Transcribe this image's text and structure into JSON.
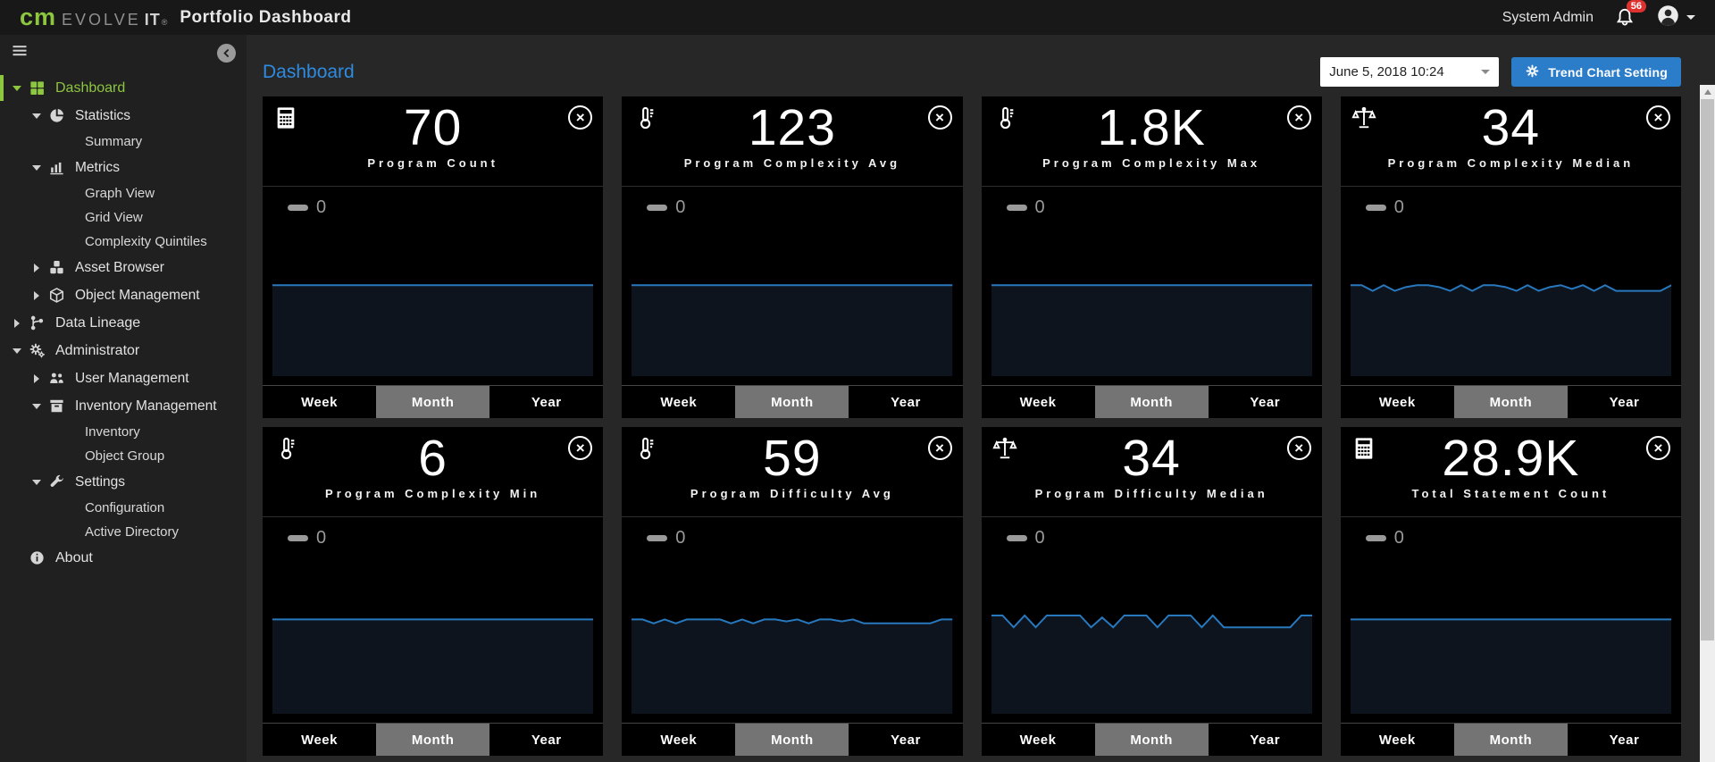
{
  "topbar": {
    "logo_cm": "cm",
    "logo_evolve": "EVOLVE",
    "logo_it": "IT",
    "logo_reg": "®",
    "app_title": "Portfolio Dashboard",
    "user_name": "System Admin",
    "notification_count": "56"
  },
  "sidebar": {
    "items": [
      {
        "label": "Dashboard",
        "level": 1,
        "icon": "grid-icon",
        "caret": "down",
        "active": true
      },
      {
        "label": "Statistics",
        "level": 2,
        "icon": "pie-icon",
        "caret": "down"
      },
      {
        "label": "Summary",
        "level": 3
      },
      {
        "label": "Metrics",
        "level": 2,
        "icon": "bar-chart-icon",
        "caret": "down"
      },
      {
        "label": "Graph View",
        "level": 3
      },
      {
        "label": "Grid View",
        "level": 3
      },
      {
        "label": "Complexity Quintiles",
        "level": 3
      },
      {
        "label": "Asset Browser",
        "level": 2,
        "icon": "assets-icon",
        "caret": "right"
      },
      {
        "label": "Object Management",
        "level": 2,
        "icon": "cube-icon",
        "caret": "right"
      },
      {
        "label": "Data Lineage",
        "level": 1,
        "icon": "lineage-icon",
        "caret": "right"
      },
      {
        "label": "Administrator",
        "level": 1,
        "icon": "gears-icon",
        "caret": "down"
      },
      {
        "label": "User Management",
        "level": 2,
        "icon": "users-icon",
        "caret": "right"
      },
      {
        "label": "Inventory Management",
        "level": 2,
        "icon": "inventory-icon",
        "caret": "down"
      },
      {
        "label": "Inventory",
        "level": 3
      },
      {
        "label": "Object Group",
        "level": 3
      },
      {
        "label": "Settings",
        "level": 2,
        "icon": "wrench-icon",
        "caret": "down"
      },
      {
        "label": "Configuration",
        "level": 3
      },
      {
        "label": "Active Directory",
        "level": 3
      },
      {
        "label": "About",
        "level": 1,
        "icon": "info-icon"
      }
    ]
  },
  "main": {
    "page_title": "Dashboard",
    "date_selector_value": "June 5, 2018 10:24",
    "trend_button_label": "Trend Chart Setting"
  },
  "card_footer": {
    "options": [
      "Week",
      "Month",
      "Year"
    ],
    "selected": "Month"
  },
  "legend_label": "0",
  "chart_data": {
    "type": "line",
    "note": "sparkline trend per card; values are vertical position (% from plot top), legend shows 0",
    "cards": [
      {
        "value": "70",
        "label": "Program Count",
        "icon": "calculator-icon",
        "trend": [
          52,
          52,
          52,
          52,
          52,
          52,
          52,
          52,
          52,
          52,
          52,
          52,
          52,
          52,
          52,
          52,
          52,
          52,
          52,
          52,
          52,
          52,
          52,
          52,
          52,
          52,
          52,
          52,
          52,
          52
        ]
      },
      {
        "value": "123",
        "label": "Program Complexity Avg",
        "icon": "thermometer-icon",
        "trend": [
          52,
          52,
          52,
          52,
          52,
          52,
          52,
          52,
          52,
          52,
          52,
          52,
          52,
          52,
          52,
          52,
          52,
          52,
          52,
          52,
          52,
          52,
          52,
          52,
          52,
          52,
          52,
          52,
          52,
          52
        ]
      },
      {
        "value": "1.8K",
        "label": "Program Complexity Max",
        "icon": "thermometer-icon",
        "trend": [
          52,
          52,
          52,
          52,
          52,
          52,
          52,
          52,
          52,
          52,
          52,
          52,
          52,
          52,
          52,
          52,
          52,
          52,
          52,
          52,
          52,
          52,
          52,
          52,
          52,
          52,
          52,
          52,
          52,
          52
        ]
      },
      {
        "value": "34",
        "label": "Program Complexity Median",
        "icon": "scale-icon",
        "trend": [
          52,
          52,
          55,
          52,
          55,
          53,
          52,
          52,
          53,
          55,
          52,
          55,
          52,
          52,
          53,
          55,
          52,
          55,
          53,
          52,
          54,
          52,
          55,
          52,
          55,
          55,
          55,
          55,
          55,
          52
        ]
      },
      {
        "value": "6",
        "label": "Program Complexity Min",
        "icon": "thermometer-icon",
        "trend": [
          52,
          52,
          52,
          52,
          52,
          52,
          52,
          52,
          52,
          52,
          52,
          52,
          52,
          52,
          52,
          52,
          52,
          52,
          52,
          52,
          52,
          52,
          52,
          52,
          52,
          52,
          52,
          52,
          52,
          52
        ]
      },
      {
        "value": "59",
        "label": "Program Difficulty Avg",
        "icon": "thermometer-icon",
        "trend": [
          52,
          52,
          54,
          52,
          54,
          52,
          52,
          52,
          52,
          54,
          52,
          54,
          52,
          52,
          53,
          52,
          54,
          52,
          52,
          53,
          52,
          54,
          54,
          54,
          54,
          54,
          54,
          54,
          52,
          52
        ]
      },
      {
        "value": "34",
        "label": "Program Difficulty Median",
        "icon": "scale-icon",
        "trend": [
          50,
          50,
          56,
          50,
          56,
          50,
          50,
          50,
          50,
          56,
          51,
          56,
          50,
          50,
          50,
          56,
          50,
          50,
          50,
          56,
          50,
          56,
          56,
          56,
          56,
          56,
          56,
          56,
          50,
          50
        ]
      },
      {
        "value": "28.9K",
        "label": "Total Statement Count",
        "icon": "calculator-icon",
        "trend": [
          52,
          52,
          52,
          52,
          52,
          52,
          52,
          52,
          52,
          52,
          52,
          52,
          52,
          52,
          52,
          52,
          52,
          52,
          52,
          52,
          52,
          52,
          52,
          52,
          52,
          52,
          52,
          52,
          52,
          52
        ]
      }
    ]
  },
  "colors": {
    "chart_line": "#2878be",
    "chart_fill": "#0d141d",
    "accent_green": "#8dc63f",
    "accent_blue": "#2b7dca",
    "badge_red": "#e03131",
    "selected_range_gray": "#747474"
  }
}
